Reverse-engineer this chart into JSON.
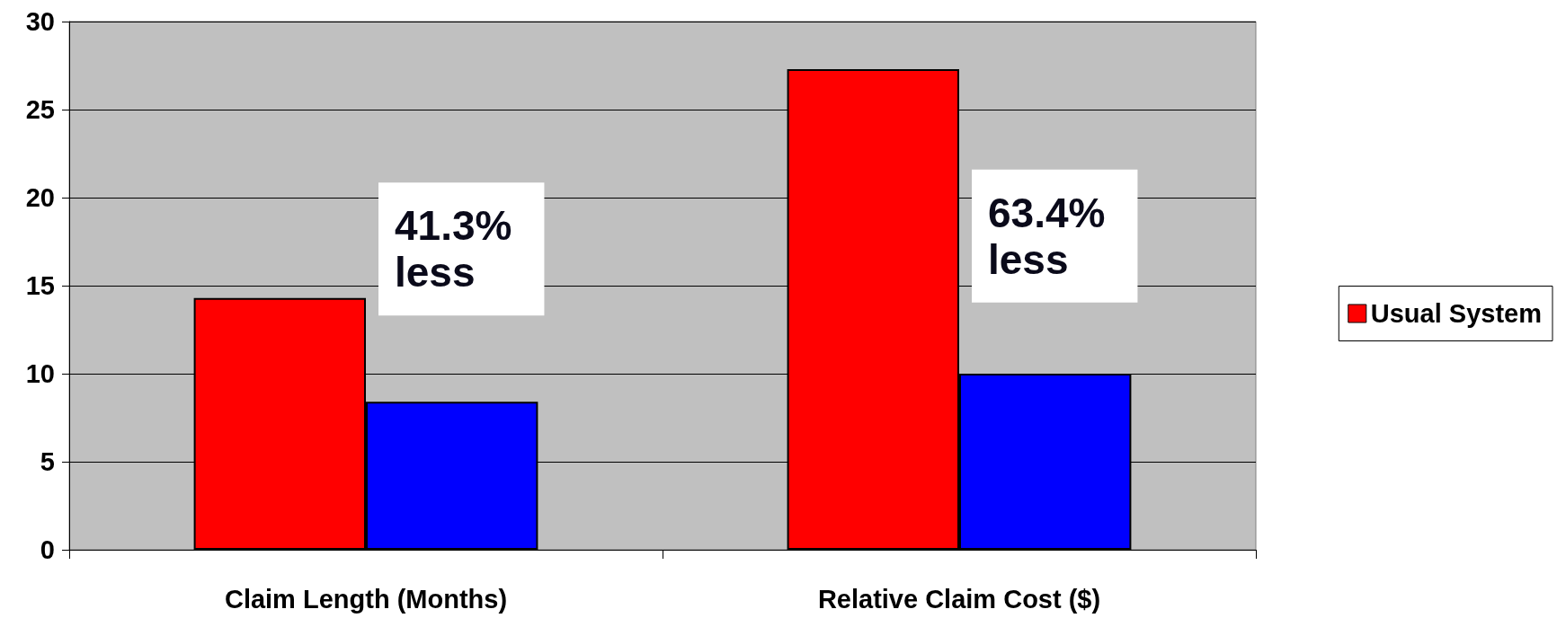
{
  "chart_data": {
    "type": "bar",
    "categories": [
      "Claim Length (Months)",
      "Relative Claim Cost ($)"
    ],
    "series": [
      {
        "name": "Usual System",
        "color": "#ff0000",
        "values": [
          14.3,
          27.3
        ]
      },
      {
        "color": "#0000ff",
        "values": [
          8.4,
          10.0
        ]
      }
    ],
    "ylim": [
      0,
      30
    ],
    "yticks": [
      0,
      5,
      10,
      15,
      20,
      25,
      30
    ],
    "grid": "y",
    "legend": "right",
    "annotations": [
      "41.3%\nless",
      "63.4%\nless"
    ]
  }
}
